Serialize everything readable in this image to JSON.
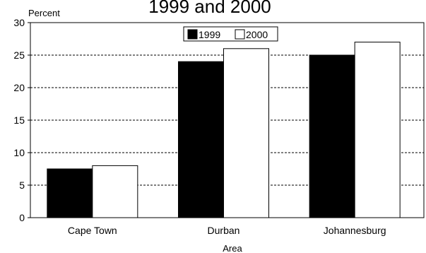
{
  "chart_data": {
    "type": "bar",
    "title": "1999 and 2000",
    "ylabel": "Percent",
    "xlabel": "Area",
    "categories": [
      "Cape Town",
      "Durban",
      "Johannesburg"
    ],
    "series": [
      {
        "name": "1999",
        "values": [
          7.5,
          24,
          25
        ],
        "color": "#000000"
      },
      {
        "name": "2000",
        "values": [
          8,
          26,
          27
        ],
        "color": "#ffffff"
      }
    ],
    "ylim": [
      0,
      30
    ],
    "yticks": [
      0,
      5,
      10,
      15,
      20,
      25,
      30
    ],
    "grid": true,
    "legend_position": "top-center"
  }
}
